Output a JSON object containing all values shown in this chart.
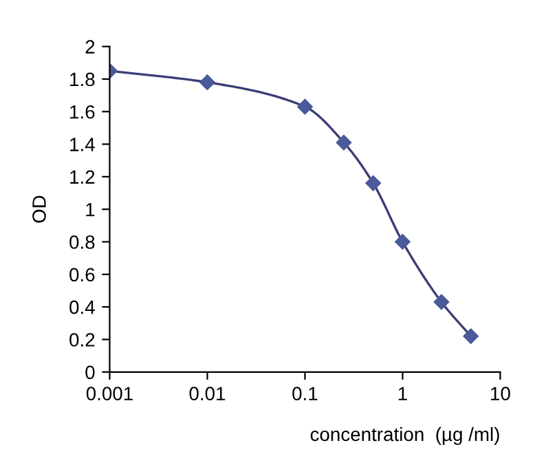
{
  "chart_data": {
    "type": "line",
    "xlabel": "concentration  (µg /ml)",
    "ylabel": "OD",
    "x": [
      0.001,
      0.01,
      0.1,
      0.25,
      0.5,
      1,
      2.5,
      5
    ],
    "series": [
      {
        "color": "#4a5a9a",
        "values": [
          1.85,
          1.78,
          1.63,
          1.41,
          1.16,
          0.8,
          0.43,
          0.22
        ]
      }
    ],
    "log": "x",
    "xlim": [
      0.001,
      10
    ],
    "xticks": [
      0.001,
      0.01,
      0.1,
      1,
      10
    ],
    "ylim": [
      0,
      2
    ],
    "yticks": [
      0,
      0.2,
      0.4,
      0.6,
      0.8,
      1,
      1.2,
      1.4,
      1.6,
      1.8,
      2
    ],
    "grid": false,
    "marker": "diamond",
    "line_style": "solid"
  }
}
